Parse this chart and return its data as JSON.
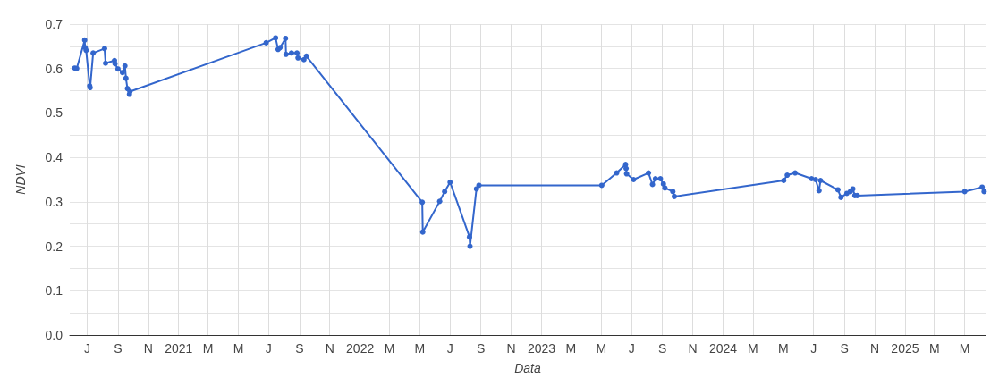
{
  "chart_data": {
    "type": "line",
    "xlabel": "Data",
    "ylabel": "NDVI",
    "grid": true,
    "marker": "circle",
    "line_style": "solid",
    "xlim": [
      "2020-05-27",
      "2025-06-12"
    ],
    "xticks": [
      {
        "value": "2020-07-01",
        "label": "J"
      },
      {
        "value": "2020-09-01",
        "label": "S"
      },
      {
        "value": "2020-11-01",
        "label": "N"
      },
      {
        "value": "2021-01-01",
        "label": "2021"
      },
      {
        "value": "2021-03-01",
        "label": "M"
      },
      {
        "value": "2021-05-01",
        "label": "M"
      },
      {
        "value": "2021-07-01",
        "label": "J"
      },
      {
        "value": "2021-09-01",
        "label": "S"
      },
      {
        "value": "2021-11-01",
        "label": "N"
      },
      {
        "value": "2022-01-01",
        "label": "2022"
      },
      {
        "value": "2022-03-01",
        "label": "M"
      },
      {
        "value": "2022-05-01",
        "label": "M"
      },
      {
        "value": "2022-07-01",
        "label": "J"
      },
      {
        "value": "2022-09-01",
        "label": "S"
      },
      {
        "value": "2022-11-01",
        "label": "N"
      },
      {
        "value": "2023-01-01",
        "label": "2023"
      },
      {
        "value": "2023-03-01",
        "label": "M"
      },
      {
        "value": "2023-05-01",
        "label": "M"
      },
      {
        "value": "2023-07-01",
        "label": "J"
      },
      {
        "value": "2023-09-01",
        "label": "S"
      },
      {
        "value": "2023-11-01",
        "label": "N"
      },
      {
        "value": "2024-01-01",
        "label": "2024"
      },
      {
        "value": "2024-03-01",
        "label": "M"
      },
      {
        "value": "2024-05-01",
        "label": "M"
      },
      {
        "value": "2024-07-01",
        "label": "J"
      },
      {
        "value": "2024-09-01",
        "label": "S"
      },
      {
        "value": "2024-11-01",
        "label": "N"
      },
      {
        "value": "2025-01-01",
        "label": "2025"
      },
      {
        "value": "2025-03-01",
        "label": "M"
      },
      {
        "value": "2025-05-01",
        "label": "M"
      }
    ],
    "ylim": [
      0,
      0.7
    ],
    "yticks": [
      {
        "value": 0,
        "label": "0.0"
      },
      {
        "value": 0.05,
        "label": null
      },
      {
        "value": 0.1,
        "label": "0.1"
      },
      {
        "value": 0.15,
        "label": null
      },
      {
        "value": 0.2,
        "label": "0.2"
      },
      {
        "value": 0.25,
        "label": null
      },
      {
        "value": 0.3,
        "label": "0.3"
      },
      {
        "value": 0.35,
        "label": null
      },
      {
        "value": 0.4,
        "label": "0.4"
      },
      {
        "value": 0.45,
        "label": null
      },
      {
        "value": 0.5,
        "label": "0.5"
      },
      {
        "value": 0.55,
        "label": null
      },
      {
        "value": 0.6,
        "label": "0.6"
      },
      {
        "value": 0.65,
        "label": null
      },
      {
        "value": 0.7,
        "label": "0.7"
      }
    ],
    "series": [
      {
        "color": "#3366cc",
        "x": [
          "2020-06-06",
          "2020-06-10",
          "2020-06-26",
          "2020-06-27",
          "2020-06-29",
          "2020-07-06",
          "2020-07-07",
          "2020-07-13",
          "2020-08-05",
          "2020-08-07",
          "2020-08-25",
          "2020-08-26",
          "2020-09-01",
          "2020-09-10",
          "2020-09-15",
          "2020-09-17",
          "2020-09-20",
          "2020-09-24",
          "2020-09-25",
          "2021-06-26",
          "2021-07-15",
          "2021-07-20",
          "2021-07-24",
          "2021-08-04",
          "2021-08-05",
          "2021-08-16",
          "2021-08-27",
          "2021-08-29",
          "2021-09-10",
          "2021-09-15",
          "2022-05-06",
          "2022-05-07",
          "2022-06-10",
          "2022-06-20",
          "2022-07-01",
          "2022-08-09",
          "2022-08-10",
          "2022-08-23",
          "2022-08-28",
          "2023-05-02",
          "2023-06-01",
          "2023-06-19",
          "2023-06-20",
          "2023-06-21",
          "2023-07-05",
          "2023-08-04",
          "2023-08-12",
          "2023-08-18",
          "2023-08-28",
          "2023-09-03",
          "2023-09-06",
          "2023-09-22",
          "2023-09-25",
          "2024-05-02",
          "2024-05-09",
          "2024-05-25",
          "2024-06-27",
          "2024-07-05",
          "2024-07-12",
          "2024-07-15",
          "2024-08-19",
          "2024-08-25",
          "2024-09-06",
          "2024-09-13",
          "2024-09-18",
          "2024-09-22",
          "2024-09-27",
          "2025-05-01",
          "2025-06-05",
          "2025-06-09"
        ],
        "values": [
          0.601,
          0.6,
          0.664,
          0.647,
          0.641,
          0.561,
          0.557,
          0.635,
          0.645,
          0.612,
          0.618,
          0.611,
          0.599,
          0.591,
          0.606,
          0.578,
          0.555,
          0.542,
          0.548,
          0.658,
          0.669,
          0.643,
          0.647,
          0.668,
          0.632,
          0.635,
          0.635,
          0.624,
          0.62,
          0.628,
          0.299,
          0.232,
          0.301,
          0.323,
          0.344,
          0.221,
          0.2,
          0.329,
          0.337,
          0.337,
          0.365,
          0.384,
          0.375,
          0.363,
          0.35,
          0.365,
          0.339,
          0.352,
          0.352,
          0.34,
          0.331,
          0.323,
          0.312,
          0.348,
          0.36,
          0.365,
          0.352,
          0.35,
          0.325,
          0.348,
          0.327,
          0.31,
          0.319,
          0.323,
          0.329,
          0.314,
          0.314,
          0.323,
          0.333,
          0.323
        ]
      }
    ]
  }
}
